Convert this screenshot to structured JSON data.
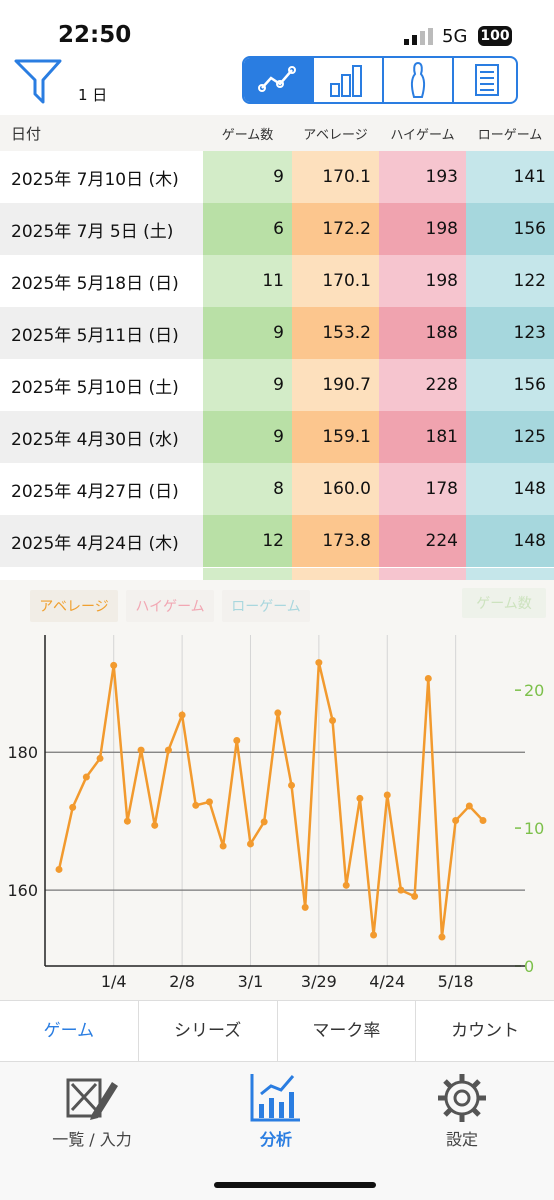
{
  "status_bar": {
    "time": "22:50",
    "network": "5G",
    "battery": "100"
  },
  "toolbar": {
    "period": "1 日"
  },
  "table": {
    "columns": [
      "日付",
      "ゲーム数",
      "アベレージ",
      "ハイゲーム",
      "ローゲーム"
    ],
    "rows": [
      [
        "2025年  7月10日 (木)",
        "9",
        "170.1",
        "193",
        "141"
      ],
      [
        "2025年  7月 5日 (土)",
        "6",
        "172.2",
        "198",
        "156"
      ],
      [
        "2025年  5月18日 (日)",
        "11",
        "170.1",
        "198",
        "122"
      ],
      [
        "2025年  5月11日 (日)",
        "9",
        "153.2",
        "188",
        "123"
      ],
      [
        "2025年  5月10日 (土)",
        "9",
        "190.7",
        "228",
        "156"
      ],
      [
        "2025年  4月30日 (水)",
        "9",
        "159.1",
        "181",
        "125"
      ],
      [
        "2025年  4月27日 (日)",
        "8",
        "160.0",
        "178",
        "148"
      ],
      [
        "2025年  4月24日 (木)",
        "12",
        "173.8",
        "224",
        "148"
      ]
    ]
  },
  "chart_data": {
    "type": "line",
    "toggles": [
      {
        "name": "アベレージ",
        "color": "#f0a030",
        "active": true
      },
      {
        "name": "ハイゲーム",
        "color": "#f2a7b3",
        "active": false
      },
      {
        "name": "ローゲーム",
        "color": "#a9d7de",
        "active": false
      }
    ],
    "y2_label": "ゲーム数",
    "categories": [
      null,
      null,
      null,
      null,
      "1/4",
      null,
      null,
      null,
      null,
      "2/8",
      null,
      null,
      null,
      null,
      "3/1",
      null,
      null,
      null,
      null,
      "3/29",
      null,
      null,
      null,
      null,
      "4/24",
      null,
      null,
      null,
      null,
      "5/18",
      null,
      null
    ],
    "series": [
      {
        "name": "アベレージ",
        "color": "#f29a2e",
        "values": [
          163.0,
          172.0,
          176.4,
          179.1,
          192.6,
          170.0,
          180.3,
          169.4,
          180.3,
          185.4,
          172.3,
          172.8,
          166.4,
          181.7,
          166.7,
          169.9,
          185.7,
          175.2,
          157.5,
          193.0,
          184.6,
          160.7,
          173.3,
          153.5,
          173.8,
          160.0,
          159.1,
          190.7,
          153.2,
          170.1,
          172.2,
          170.1
        ]
      }
    ],
    "ylim": [
      149,
      197
    ],
    "yticks": [
      160,
      180
    ],
    "y2lim": [
      0,
      24
    ],
    "y2ticks": [
      0,
      10,
      20
    ],
    "y2color": "#7cc04a",
    "grid": true
  },
  "tabs": [
    "ゲーム",
    "シリーズ",
    "マーク率",
    "カウント"
  ],
  "nav": [
    "一覧 / 入力",
    "分析",
    "設定"
  ]
}
